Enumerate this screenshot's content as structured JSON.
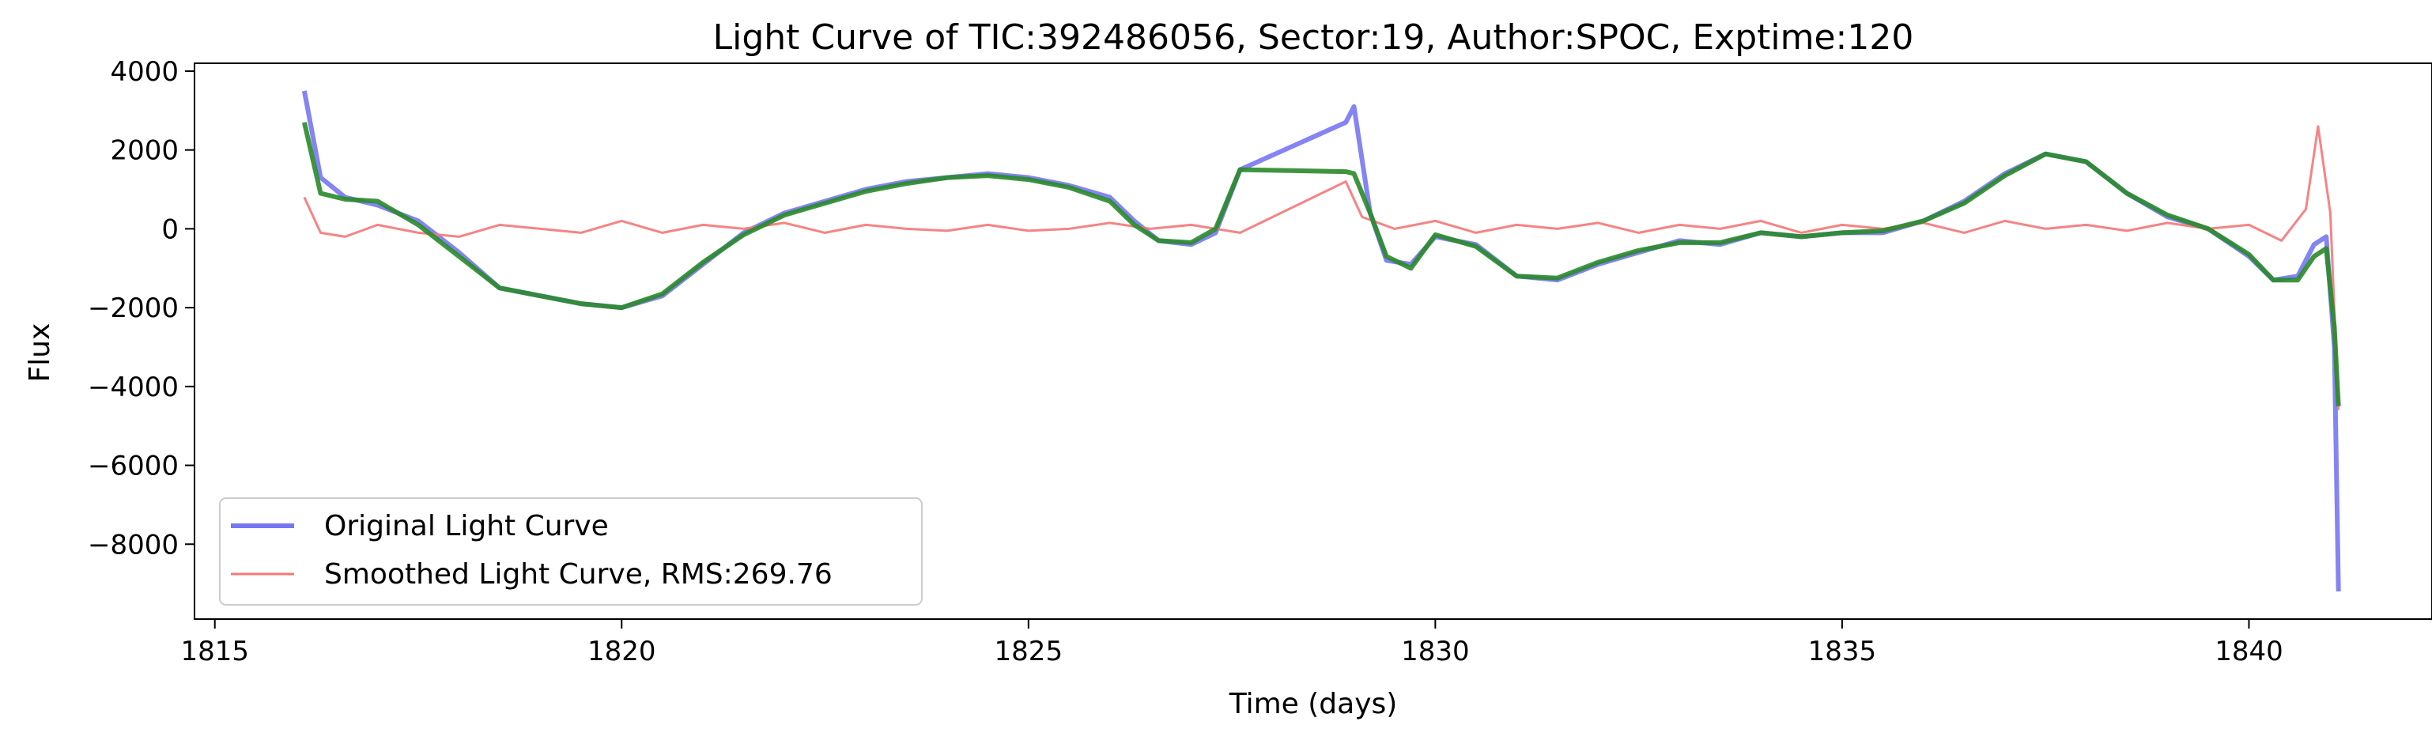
{
  "chart_data": {
    "type": "line",
    "title": "Light Curve of TIC:392486056, Sector:19, Author:SPOC, Exptime:120",
    "xlabel": "Time (days)",
    "ylabel": "Flux",
    "xlim": [
      1814.75,
      1842.25
    ],
    "ylim": [
      -9900,
      4200
    ],
    "xticks": [
      1815,
      1820,
      1825,
      1830,
      1835,
      1840
    ],
    "yticks": [
      4000,
      2000,
      0,
      -2000,
      -4000,
      -6000,
      -8000
    ],
    "ytick_labels": [
      "4000",
      "2000",
      "0",
      "−2000",
      "−4000",
      "−6000",
      "−8000"
    ],
    "legend": {
      "position": "lower-left",
      "entries": [
        "Original Light Curve",
        "Smoothed Light Curve, RMS:269.76"
      ]
    },
    "series": [
      {
        "name": "Original Light Curve",
        "color": "#7777f2",
        "x": [
          1816.1,
          1816.3,
          1816.6,
          1817.0,
          1817.5,
          1818.0,
          1818.5,
          1819.0,
          1819.5,
          1820.0,
          1820.5,
          1821.0,
          1821.5,
          1822.0,
          1822.5,
          1823.0,
          1823.5,
          1824.0,
          1824.5,
          1825.0,
          1825.5,
          1826.0,
          1826.3,
          1826.6,
          1827.0,
          1827.3,
          1827.6,
          1828.9,
          1829.0,
          1829.2,
          1829.4,
          1829.7,
          1830.0,
          1830.5,
          1831.0,
          1831.5,
          1832.0,
          1832.5,
          1833.0,
          1833.5,
          1834.0,
          1834.5,
          1835.0,
          1835.5,
          1836.0,
          1836.5,
          1837.0,
          1837.5,
          1838.0,
          1838.5,
          1839.0,
          1839.5,
          1840.0,
          1840.3,
          1840.6,
          1840.8,
          1840.95,
          1841.05,
          1841.1
        ],
        "y": [
          3500,
          1300,
          800,
          600,
          200,
          -600,
          -1500,
          -1700,
          -1900,
          -2000,
          -1700,
          -900,
          -100,
          400,
          700,
          1000,
          1200,
          1300,
          1400,
          1300,
          1100,
          800,
          200,
          -300,
          -400,
          -100,
          1500,
          2700,
          3100,
          400,
          -800,
          -900,
          -200,
          -400,
          -1200,
          -1300,
          -900,
          -600,
          -300,
          -400,
          -100,
          -200,
          -100,
          -100,
          200,
          700,
          1400,
          1900,
          1700,
          900,
          300,
          0,
          -700,
          -1300,
          -1200,
          -400,
          -200,
          -3000,
          -9200
        ]
      },
      {
        "name": "Smoothed Light Curve, RMS:269.76",
        "color": "#f47777",
        "x": [
          1816.1,
          1816.3,
          1816.6,
          1817.0,
          1817.5,
          1818.0,
          1818.5,
          1819.0,
          1819.5,
          1820.0,
          1820.5,
          1821.0,
          1821.5,
          1822.0,
          1822.5,
          1823.0,
          1823.5,
          1824.0,
          1824.5,
          1825.0,
          1825.5,
          1826.0,
          1826.5,
          1827.0,
          1827.6,
          1828.9,
          1829.1,
          1829.5,
          1830.0,
          1830.5,
          1831.0,
          1831.5,
          1832.0,
          1832.5,
          1833.0,
          1833.5,
          1834.0,
          1834.5,
          1835.0,
          1835.5,
          1836.0,
          1836.5,
          1837.0,
          1837.5,
          1838.0,
          1838.5,
          1839.0,
          1839.5,
          1840.0,
          1840.4,
          1840.7,
          1840.85,
          1841.0,
          1841.1
        ],
        "y": [
          800,
          -100,
          -200,
          100,
          -100,
          -200,
          100,
          0,
          -100,
          200,
          -100,
          100,
          0,
          150,
          -100,
          100,
          0,
          -50,
          100,
          -50,
          0,
          150,
          0,
          100,
          -100,
          1200,
          300,
          0,
          200,
          -100,
          100,
          0,
          150,
          -100,
          100,
          0,
          200,
          -100,
          100,
          0,
          150,
          -100,
          200,
          0,
          100,
          -50,
          150,
          0,
          100,
          -300,
          500,
          2600,
          400,
          -4600
        ]
      },
      {
        "name": "",
        "color": "#2a8a2a",
        "x": [
          1816.1,
          1816.3,
          1816.6,
          1817.0,
          1817.5,
          1818.0,
          1818.5,
          1819.0,
          1819.5,
          1820.0,
          1820.5,
          1821.0,
          1821.5,
          1822.0,
          1822.5,
          1823.0,
          1823.5,
          1824.0,
          1824.5,
          1825.0,
          1825.5,
          1826.0,
          1826.3,
          1826.6,
          1827.0,
          1827.3,
          1827.6,
          1828.9,
          1829.0,
          1829.2,
          1829.4,
          1829.7,
          1830.0,
          1830.5,
          1831.0,
          1831.5,
          1832.0,
          1832.5,
          1833.0,
          1833.5,
          1834.0,
          1834.5,
          1835.0,
          1835.5,
          1836.0,
          1836.5,
          1837.0,
          1837.5,
          1838.0,
          1838.5,
          1839.0,
          1839.5,
          1840.0,
          1840.3,
          1840.6,
          1840.8,
          1840.95,
          1841.05,
          1841.1
        ],
        "y": [
          2700,
          900,
          750,
          700,
          100,
          -700,
          -1500,
          -1700,
          -1900,
          -2000,
          -1650,
          -850,
          -150,
          350,
          650,
          950,
          1150,
          1300,
          1350,
          1250,
          1050,
          700,
          100,
          -300,
          -350,
          0,
          1500,
          1450,
          1400,
          400,
          -700,
          -1000,
          -150,
          -450,
          -1200,
          -1250,
          -850,
          -550,
          -350,
          -350,
          -100,
          -200,
          -100,
          -50,
          200,
          650,
          1350,
          1900,
          1700,
          900,
          350,
          0,
          -650,
          -1300,
          -1300,
          -700,
          -500,
          -2500,
          -4500
        ]
      }
    ]
  }
}
